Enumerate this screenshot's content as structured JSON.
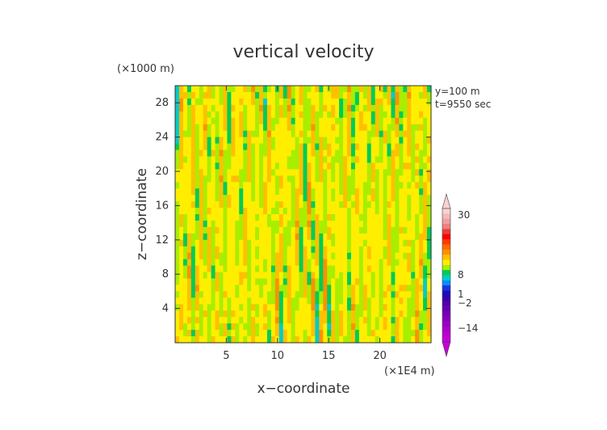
{
  "chart_data": {
    "type": "heatmap",
    "title": "vertical velocity",
    "xlabel": "x−coordinate",
    "ylabel": "z−coordinate",
    "x_unit": "(×1E4 m)",
    "y_unit": "(×1000 m)",
    "annotations": [
      "y=100 m",
      "t=9550 sec"
    ],
    "xlim": [
      0,
      25
    ],
    "ylim": [
      0,
      30
    ],
    "x_ticks": [
      5,
      10,
      15,
      20
    ],
    "x_tick_labels": [
      "5",
      "10",
      "15",
      "20"
    ],
    "y_ticks": [
      4,
      8,
      12,
      16,
      20,
      24,
      28
    ],
    "y_tick_labels": [
      "4",
      "8",
      "12",
      "16",
      "20",
      "24",
      "28"
    ],
    "colorbar": {
      "tick_labels": [
        "30",
        "8",
        "1",
        "−2",
        "−14"
      ],
      "levels_top_to_bottom": [
        30,
        25,
        20,
        15,
        12,
        10,
        8,
        6,
        4,
        3,
        2,
        1,
        0,
        -1,
        -2,
        -3,
        -4,
        -6,
        -8,
        -10,
        -12,
        -14,
        -17,
        -20,
        -25,
        -30
      ],
      "colors_top_to_bottom": [
        "#f7d2d2",
        "#f4b8b8",
        "#f19e9e",
        "#ee8080",
        "#ea3d3d",
        "#ff0000",
        "#ff3a00",
        "#ff6a00",
        "#ff9000",
        "#ffc000",
        "#ffee00",
        "#a8ee00",
        "#00cc55",
        "#00cccc",
        "#0090ff",
        "#2030dd",
        "#1a10bb",
        "#3a00aa",
        "#5200a8",
        "#6400b0",
        "#7600b6",
        "#8800bb",
        "#9a00c0",
        "#ab00c8",
        "#bc00d0",
        "#c800d8"
      ]
    },
    "field_palette": [
      "#d80000",
      "#ff6a00",
      "#ff9000",
      "#ffc000",
      "#ffee00",
      "#a8ee00",
      "#00cc55",
      "#00cccc",
      "#0090ff",
      "#2030dd",
      "#1a10bb"
    ],
    "grid": false,
    "legend": "colorbar right"
  }
}
